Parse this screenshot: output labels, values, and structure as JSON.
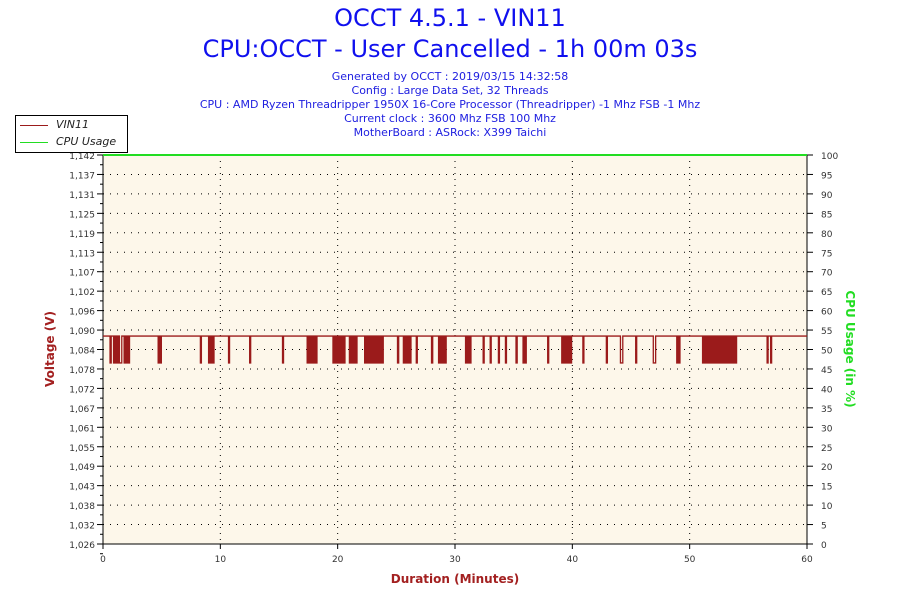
{
  "title": "OCCT 4.5.1 - VIN11",
  "subtitle": "CPU:OCCT - User Cancelled - 1h 00m 03s",
  "info": [
    "Generated by OCCT : 2019/03/15 14:32:58",
    "Config : Large Data Set, 32 Threads",
    "CPU : AMD Ryzen Threadripper 1950X 16-Core Processor (Threadripper) -1 Mhz FSB -1 Mhz",
    "Current clock : 3600 Mhz FSB 100 Mhz",
    "MotherBoard : ASRock: X399 Taichi"
  ],
  "chart_data": {
    "type": "line",
    "xlabel": "Duration (Minutes)",
    "ylabel": "Voltage (V)",
    "y2label": "CPU Usage (in %)",
    "xlim": [
      0,
      60
    ],
    "ylim": [
      1.026,
      1.142
    ],
    "y2lim": [
      0,
      100
    ],
    "xticks": [
      "0",
      "10",
      "20",
      "30",
      "40",
      "50",
      "60"
    ],
    "yticks": [
      "1,142",
      "1,137",
      "1,131",
      "1,125",
      "1,119",
      "1,113",
      "1,107",
      "1,102",
      "1,096",
      "1,090",
      "1,084",
      "1,078",
      "1,072",
      "1,067",
      "1,061",
      "1,055",
      "1,049",
      "1,043",
      "1,038",
      "1,032",
      "1,026"
    ],
    "y2ticks": [
      "100",
      "95",
      "90",
      "85",
      "80",
      "75",
      "70",
      "65",
      "60",
      "55",
      "50",
      "45",
      "40",
      "35",
      "30",
      "25",
      "20",
      "15",
      "10",
      "5",
      "0"
    ],
    "grid": true,
    "legend_position": "top-left",
    "series": [
      {
        "name": "VIN11",
        "color": "#9b1b1b",
        "base_value": 1.088,
        "dip_value": 1.08,
        "dip_intervals_minutes": [
          [
            0.6,
            0.7
          ],
          [
            0.9,
            1.3
          ],
          [
            1.4,
            1.6
          ],
          [
            1.8,
            2.3
          ],
          [
            4.7,
            5.0
          ],
          [
            8.3,
            8.35
          ],
          [
            9.0,
            9.4
          ],
          [
            10.7,
            10.75
          ],
          [
            12.5,
            12.55
          ],
          [
            15.3,
            15.35
          ],
          [
            17.4,
            18.2
          ],
          [
            19.6,
            20.6
          ],
          [
            21.0,
            21.6
          ],
          [
            22.3,
            23.9
          ],
          [
            25.1,
            25.2
          ],
          [
            25.6,
            26.2
          ],
          [
            26.7,
            26.75
          ],
          [
            28.0,
            28.1
          ],
          [
            28.6,
            29.2
          ],
          [
            30.9,
            31.3
          ],
          [
            32.4,
            32.45
          ],
          [
            33.0,
            33.05
          ],
          [
            33.7,
            33.75
          ],
          [
            34.3,
            34.35
          ],
          [
            35.2,
            35.3
          ],
          [
            35.8,
            36.1
          ],
          [
            37.9,
            37.95
          ],
          [
            39.1,
            40.0
          ],
          [
            40.9,
            40.95
          ],
          [
            42.9,
            42.95
          ],
          [
            44.1,
            44.3
          ],
          [
            45.4,
            45.45
          ],
          [
            46.9,
            47.1
          ],
          [
            48.9,
            49.2
          ],
          [
            51.1,
            54.0
          ],
          [
            56.6,
            56.65
          ],
          [
            56.9,
            56.95
          ]
        ]
      },
      {
        "name": "CPU Usage",
        "color": "#22dd22",
        "values_percent": [
          [
            0,
            100
          ],
          [
            60,
            100
          ]
        ]
      }
    ]
  }
}
